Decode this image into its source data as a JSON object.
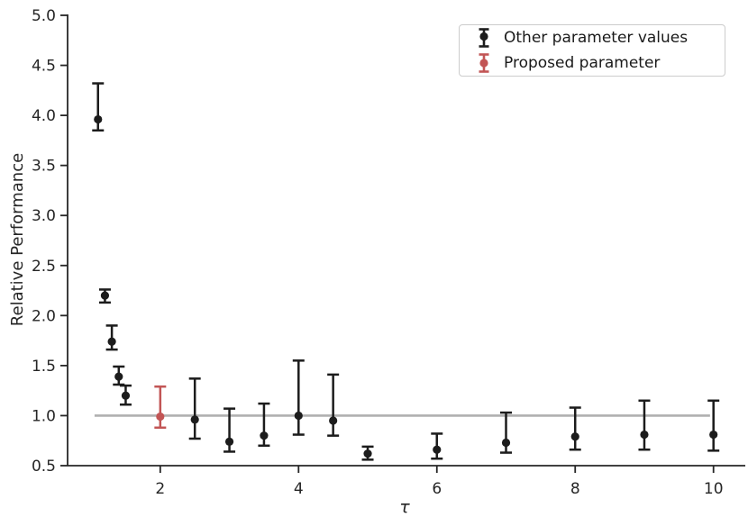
{
  "chart_data": {
    "type": "scatter",
    "subtype": "errorbar",
    "title": "",
    "xlabel": "τ",
    "ylabel": "Relative Performance",
    "xlim": [
      0.66,
      10.46
    ],
    "ylim": [
      0.5,
      5.0
    ],
    "x_ticks": [
      2,
      4,
      6,
      8,
      10
    ],
    "y_ticks": [
      0.5,
      1.0,
      1.5,
      2.0,
      2.5,
      3.0,
      3.5,
      4.0,
      4.5,
      5.0
    ],
    "grid": false,
    "legend_position": "upper right",
    "reference_line": {
      "y": 1.0,
      "x_start": 1.05,
      "x_end": 9.95,
      "color": "#b0b0b0"
    },
    "series": [
      {
        "name": "Other parameter values",
        "color": "#1c1c1c",
        "marker": "circle-with-errorbar",
        "points": [
          {
            "x": 1.1,
            "y": 3.96,
            "lo": 3.85,
            "hi": 4.32
          },
          {
            "x": 1.2,
            "y": 2.2,
            "lo": 2.13,
            "hi": 2.26
          },
          {
            "x": 1.3,
            "y": 1.74,
            "lo": 1.66,
            "hi": 1.9
          },
          {
            "x": 1.4,
            "y": 1.39,
            "lo": 1.31,
            "hi": 1.49
          },
          {
            "x": 1.5,
            "y": 1.2,
            "lo": 1.11,
            "hi": 1.3
          },
          {
            "x": 2.5,
            "y": 0.96,
            "lo": 0.77,
            "hi": 1.37
          },
          {
            "x": 3.0,
            "y": 0.74,
            "lo": 0.64,
            "hi": 1.07
          },
          {
            "x": 3.5,
            "y": 0.8,
            "lo": 0.7,
            "hi": 1.12
          },
          {
            "x": 4.0,
            "y": 1.0,
            "lo": 0.81,
            "hi": 1.55
          },
          {
            "x": 4.5,
            "y": 0.95,
            "lo": 0.8,
            "hi": 1.41
          },
          {
            "x": 5.0,
            "y": 0.62,
            "lo": 0.56,
            "hi": 0.69
          },
          {
            "x": 6.0,
            "y": 0.66,
            "lo": 0.57,
            "hi": 0.82
          },
          {
            "x": 7.0,
            "y": 0.73,
            "lo": 0.63,
            "hi": 1.03
          },
          {
            "x": 8.0,
            "y": 0.79,
            "lo": 0.66,
            "hi": 1.08
          },
          {
            "x": 9.0,
            "y": 0.81,
            "lo": 0.66,
            "hi": 1.15
          },
          {
            "x": 10.0,
            "y": 0.81,
            "lo": 0.65,
            "hi": 1.15
          }
        ]
      },
      {
        "name": "Proposed parameter",
        "color": "#c25555",
        "marker": "circle-with-errorbar",
        "points": [
          {
            "x": 2.0,
            "y": 0.99,
            "lo": 0.88,
            "hi": 1.29
          }
        ]
      }
    ]
  },
  "colors": {
    "axis": "#262626",
    "tick_text": "#262626",
    "legend_border": "#cccccc",
    "background": "#ffffff"
  }
}
